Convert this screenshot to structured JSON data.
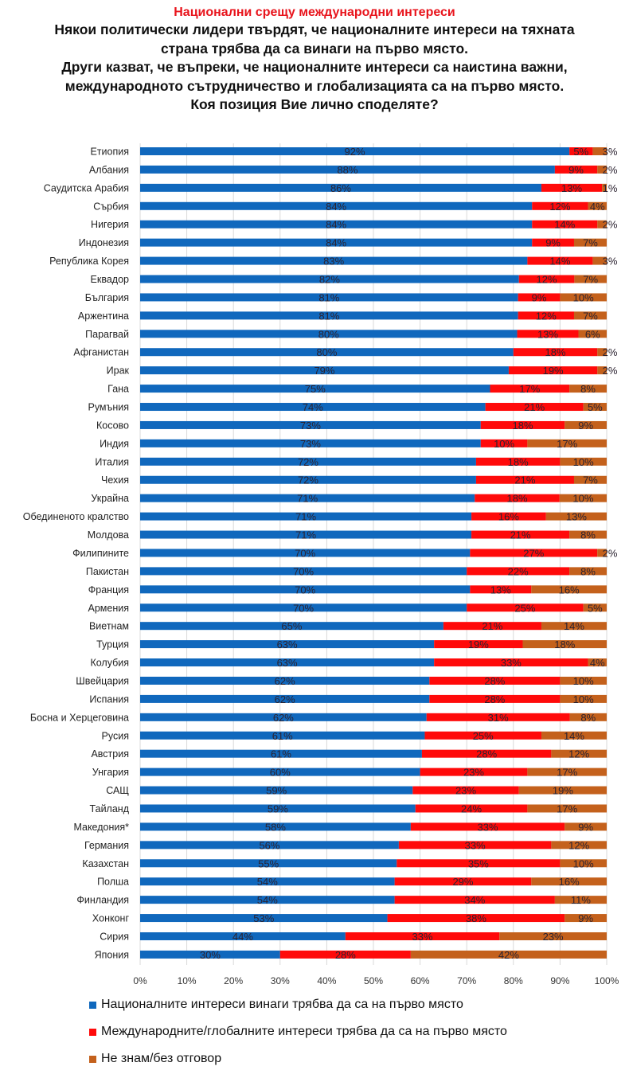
{
  "header": {
    "title": "Национални срещу международни интереси",
    "question_lines": [
      "Някои политически лидери твърдят, че националните интереси на тяхната",
      "страна трябва да са винаги на първо място.",
      "Други казват, че въпреки, че националните интереси са наистина важни,",
      "международното сътрудничество и глобализацията са на първо място.",
      "Коя позиция Вие лично споделяте?"
    ]
  },
  "chart_data": {
    "type": "bar",
    "orientation": "horizontal",
    "stacked": "percent",
    "title": "Национални срещу международни интереси",
    "xlabel": "",
    "ylabel": "",
    "xlim": [
      0,
      100
    ],
    "x_ticks": [
      "0%",
      "10%",
      "20%",
      "30%",
      "40%",
      "50%",
      "60%",
      "70%",
      "80%",
      "90%",
      "100%"
    ],
    "grid": "vertical",
    "legend_position": "bottom-left",
    "colors": {
      "national": "#1068bd",
      "international": "#ff0a0a",
      "dont_know": "#c4611c"
    },
    "categories": [
      "Етиопия",
      "Албания",
      "Саудитска Арабия",
      "Сърбия",
      "Нигерия",
      "Индонезия",
      "Република Корея",
      "Еквадор",
      "България",
      "Аржентина",
      "Парагвай",
      "Афганистан",
      "Ирак",
      "Гана",
      "Румъния",
      "Косово",
      "Индия",
      "Италия",
      "Чехия",
      "Украйна",
      "Обединеното кралство",
      "Молдова",
      "Филипините",
      "Пакистан",
      "Франция",
      "Армения",
      "Виетнам",
      "Турция",
      "Колубия",
      "Швейцария",
      "Испания",
      "Босна и Херцеговина",
      "Русия",
      "Австрия",
      "Унгария",
      "САЩ",
      "Тайланд",
      "Македония*",
      "Германия",
      "Казахстан",
      "Полша",
      "Финландия",
      "Хонконг",
      "Сирия",
      "Япония"
    ],
    "series": [
      {
        "name": "Националните интереси винаги трябва да са на първо място",
        "key": "national",
        "values": [
          92,
          88,
          86,
          84,
          84,
          84,
          83,
          82,
          81,
          81,
          80,
          80,
          79,
          75,
          74,
          73,
          73,
          72,
          72,
          71,
          71,
          71,
          70,
          70,
          70,
          70,
          65,
          63,
          63,
          62,
          62,
          62,
          61,
          61,
          60,
          59,
          59,
          58,
          56,
          55,
          54,
          54,
          53,
          44,
          30
        ]
      },
      {
        "name": "Международните/глобалните интереси трябва да са на първо място",
        "key": "international",
        "values": [
          5,
          9,
          13,
          12,
          14,
          9,
          14,
          12,
          9,
          12,
          13,
          18,
          19,
          17,
          21,
          18,
          10,
          18,
          21,
          18,
          16,
          21,
          27,
          22,
          13,
          25,
          21,
          19,
          33,
          28,
          28,
          31,
          25,
          28,
          23,
          23,
          24,
          33,
          33,
          35,
          29,
          34,
          38,
          33,
          28
        ]
      },
      {
        "name": "Не знам/без отговор",
        "key": "dont_know",
        "values": [
          3,
          2,
          1,
          4,
          2,
          7,
          3,
          7,
          10,
          7,
          6,
          2,
          2,
          8,
          5,
          9,
          17,
          10,
          7,
          10,
          13,
          8,
          2,
          8,
          16,
          5,
          14,
          18,
          4,
          10,
          10,
          8,
          14,
          12,
          17,
          19,
          17,
          9,
          12,
          10,
          16,
          11,
          9,
          23,
          42
        ]
      }
    ]
  }
}
